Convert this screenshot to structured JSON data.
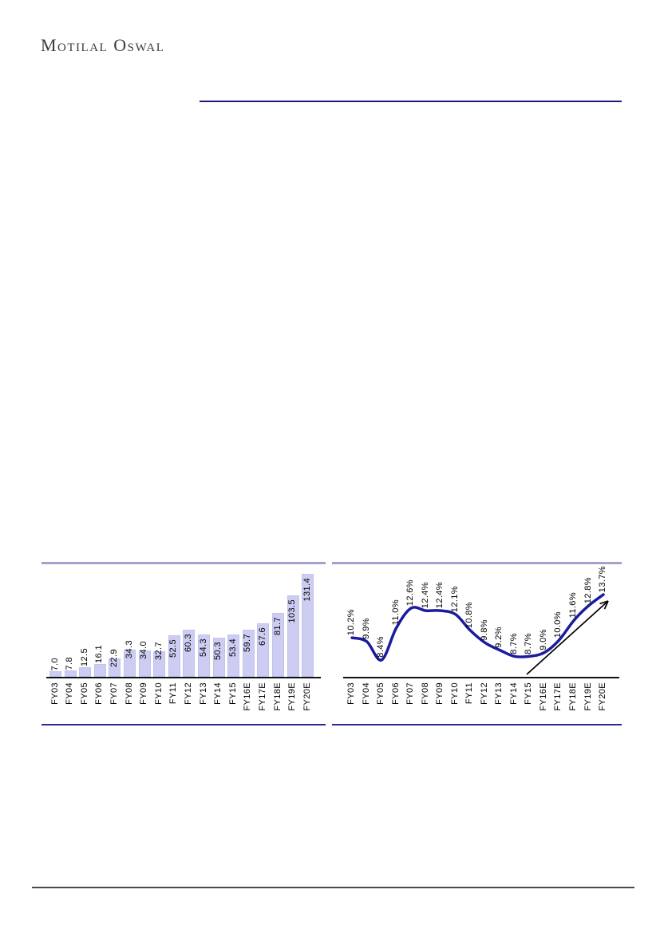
{
  "logo": {
    "text": "Motilal Oswal"
  },
  "colors": {
    "bar_fill": "#cdcdf3",
    "bar_border": "#c2c2ee",
    "line_stroke": "#1b1b9e",
    "chart_border_top": "#a2a2cd",
    "chart_border_bottom": "#2b2b90",
    "header_rule": "#1a1a7a",
    "footer_rule": "#4a4a4a",
    "axis": "#111111",
    "arrow": "#000000",
    "label_text": "#000000"
  },
  "chart_data": [
    {
      "type": "bar",
      "title": "",
      "xlabel": "",
      "ylabel": "",
      "grid": false,
      "legend": false,
      "ylim": [
        0,
        140
      ],
      "categories": [
        "FY03",
        "FY04",
        "FY05",
        "FY06",
        "FY07",
        "FY08",
        "FY09",
        "FY10",
        "FY11",
        "FY12",
        "FY13",
        "FY14",
        "FY15",
        "FY16E",
        "FY17E",
        "FY18E",
        "FY19E",
        "FY20E"
      ],
      "values": [
        7.0,
        7.8,
        12.5,
        16.1,
        22.9,
        34.3,
        34.0,
        32.7,
        52.5,
        60.3,
        54.3,
        50.3,
        53.4,
        59.7,
        67.6,
        81.7,
        103.5,
        131.4
      ],
      "value_labels": [
        "7.0",
        "7.8",
        "12.5",
        "16.1",
        "22.9",
        "34.3",
        "34.0",
        "32.7",
        "52.5",
        "60.3",
        "54.3",
        "50.3",
        "53.4",
        "59.7",
        "67.6",
        "81.7",
        "103.5",
        "131.4"
      ]
    },
    {
      "type": "line",
      "title": "",
      "xlabel": "",
      "ylabel": "",
      "grid": false,
      "legend": false,
      "smoothed": true,
      "ylim": [
        8,
        14
      ],
      "annotation": "upward trend arrow from FY15 to FY20E",
      "categories": [
        "FY03",
        "FY04",
        "FY05",
        "FY06",
        "FY07",
        "FY08",
        "FY09",
        "FY10",
        "FY11",
        "FY12",
        "FY13",
        "FY14",
        "FY15",
        "FY16E",
        "FY17E",
        "FY18E",
        "FY19E",
        "FY20E"
      ],
      "values": [
        10.2,
        9.9,
        8.4,
        11.0,
        12.6,
        12.4,
        12.4,
        12.1,
        10.8,
        9.8,
        9.2,
        8.7,
        8.7,
        9.0,
        10.0,
        11.6,
        12.8,
        13.7
      ],
      "value_labels": [
        "10.2%",
        "9.9%",
        "8.4%",
        "11.0%",
        "12.6%",
        "12.4%",
        "12.4%",
        "12.1%",
        "10.8%",
        "9.8%",
        "9.2%",
        "8.7%",
        "8.7%",
        "9.0%",
        "10.0%",
        "11.6%",
        "12.8%",
        "13.7%"
      ]
    }
  ]
}
